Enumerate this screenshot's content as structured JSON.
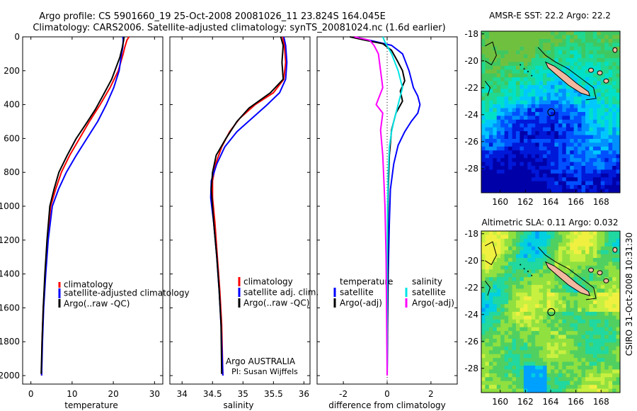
{
  "title_line1": "Argo profile: CS 5901660_19 25-Oct-2008 20081026_11 23.824S 164.045E",
  "title_line2": "Climatology: CARS2006. Satellite-adjusted climatology: synTS_20081024.nc (1.6d earlier)",
  "side_stamp": "CSIRO 31-Oct-2008 10:31:30",
  "colors": {
    "climatology": "#ff0000",
    "satellite": "#0000ff",
    "argo": "#000000",
    "salinity_satellite": "#00e5e5",
    "salinity_argo": "#ff00ff"
  },
  "chart_data": [
    {
      "type": "line",
      "xlabel": "temperature",
      "xlim": [
        -2,
        32
      ],
      "ylim": [
        2050,
        0
      ],
      "xticks": [
        0,
        10,
        20,
        30
      ],
      "xtick_labels": [
        "0",
        "10",
        "20",
        "30"
      ],
      "yticks": [
        0,
        200,
        400,
        600,
        800,
        1000,
        1200,
        1400,
        1600,
        1800,
        2000
      ],
      "ytick_labels": [
        "0",
        "200",
        "400",
        "600",
        "800",
        "1000",
        "1200",
        "1400",
        "1600",
        "1800",
        "2000"
      ],
      "legend": [
        "climatology",
        "satellite-adjusted climatology",
        "Argo(..raw -QC)"
      ],
      "series": [
        {
          "name": "climatology",
          "color": "#ff0000",
          "x": [
            23.8,
            23.3,
            22.8,
            22.4,
            21.2,
            19.2,
            16.8,
            14.2,
            11.8,
            9.4,
            7.4,
            6.0,
            4.8,
            4.0,
            3.5,
            3.0,
            2.7,
            2.6
          ],
          "y": [
            0,
            20,
            60,
            100,
            200,
            300,
            400,
            500,
            600,
            700,
            800,
            900,
            1000,
            1200,
            1400,
            1600,
            1800,
            2000
          ]
        },
        {
          "name": "satellite-adjusted climatology",
          "color": "#0000ff",
          "x": [
            22.3,
            22.4,
            22.3,
            22.0,
            21.4,
            20.1,
            18.3,
            16.2,
            13.6,
            11.0,
            8.6,
            6.7,
            5.2,
            4.2,
            3.6,
            3.1,
            2.8,
            2.6
          ],
          "y": [
            0,
            20,
            60,
            100,
            200,
            300,
            400,
            500,
            600,
            700,
            800,
            900,
            1000,
            1200,
            1400,
            1600,
            1800,
            2000
          ]
        },
        {
          "name": "Argo(..raw -QC)",
          "color": "#000000",
          "x": [
            22.6,
            22.5,
            22.2,
            21.6,
            19.6,
            17.4,
            15.6,
            13.2,
            11.0,
            8.8,
            6.8,
            5.6,
            4.6,
            3.9,
            3.4,
            3.0,
            2.7,
            2.5
          ],
          "y": [
            0,
            20,
            60,
            120,
            250,
            350,
            430,
            520,
            600,
            700,
            800,
            900,
            1000,
            1200,
            1400,
            1600,
            1800,
            1990
          ]
        }
      ]
    },
    {
      "type": "line",
      "xlabel": "salinity",
      "xlim": [
        33.8,
        36.1
      ],
      "ylim": [
        2050,
        0
      ],
      "xticks": [
        34,
        34.5,
        35,
        35.5,
        36
      ],
      "xtick_labels": [
        "34",
        "34.5",
        "35",
        "35.5",
        "36"
      ],
      "legend": [
        "climatology",
        "satellite adj. clim.",
        "Argo(..raw -QC)"
      ],
      "annotation_line1": "Argo AUSTRALIA",
      "annotation_line2": "PI: Susan Wijffels",
      "series": [
        {
          "name": "climatology",
          "color": "#ff0000",
          "x": [
            35.65,
            35.68,
            35.7,
            35.67,
            35.5,
            35.2,
            34.95,
            34.78,
            34.65,
            34.55,
            34.5,
            34.5,
            34.54,
            34.58,
            34.62,
            34.65,
            34.67
          ],
          "y": [
            0,
            50,
            150,
            250,
            330,
            400,
            480,
            560,
            650,
            750,
            850,
            950,
            1100,
            1300,
            1500,
            1700,
            2000
          ]
        },
        {
          "name": "satellite adj. clim.",
          "color": "#0000ff",
          "x": [
            35.67,
            35.7,
            35.72,
            35.7,
            35.6,
            35.4,
            35.15,
            34.9,
            34.7,
            34.57,
            34.48,
            34.47,
            34.52,
            34.57,
            34.61,
            34.64,
            34.67
          ],
          "y": [
            0,
            50,
            150,
            250,
            330,
            400,
            480,
            560,
            650,
            750,
            850,
            950,
            1100,
            1300,
            1500,
            1700,
            2000
          ]
        },
        {
          "name": "Argo(..raw -QC)",
          "color": "#000000",
          "x": [
            35.62,
            35.66,
            35.64,
            35.66,
            35.45,
            35.1,
            34.9,
            34.72,
            34.56,
            34.5,
            34.48,
            34.52,
            34.57,
            34.61,
            34.64,
            34.65
          ],
          "y": [
            0,
            50,
            150,
            250,
            330,
            420,
            500,
            600,
            700,
            800,
            900,
            1100,
            1300,
            1500,
            1700,
            1990
          ]
        }
      ]
    },
    {
      "type": "line",
      "xlabel": "difference from climatology",
      "xlim": [
        -3.2,
        3.2
      ],
      "ylim": [
        2050,
        0
      ],
      "xticks": [
        -2,
        0,
        2
      ],
      "xtick_labels": [
        "-2",
        "0",
        "2"
      ],
      "legend_groups": [
        "temperature",
        "salinity"
      ],
      "legend": [
        "satellite",
        "Argo(-adj)",
        "satellite",
        "Argo(-adj)"
      ],
      "series": [
        {
          "name": "temperature satellite",
          "color": "#0000ff",
          "x": [
            -1.5,
            -0.8,
            0.2,
            0.7,
            1.0,
            1.2,
            1.4,
            1.5,
            1.4,
            1.1,
            0.8,
            0.5,
            0.3,
            0.15,
            0.1,
            0.05,
            0.02,
            0.0
          ],
          "y": [
            0,
            20,
            50,
            100,
            200,
            300,
            350,
            400,
            450,
            500,
            560,
            640,
            750,
            900,
            1100,
            1400,
            1700,
            2000
          ]
        },
        {
          "name": "temperature Argo(-adj)",
          "color": "#000000",
          "x": [
            -1.7,
            -1.0,
            -0.2,
            0.2,
            0.5,
            0.7,
            0.8,
            0.6,
            0.7,
            0.4,
            0.2,
            0.1,
            0.05,
            0.03,
            0.02,
            0.0
          ],
          "y": [
            0,
            20,
            40,
            80,
            150,
            200,
            260,
            320,
            380,
            450,
            550,
            700,
            900,
            1200,
            1600,
            2000
          ]
        },
        {
          "name": "salinity satellite",
          "color": "#00e5e5",
          "x": [
            -0.2,
            -0.1,
            0.2,
            0.5,
            0.7,
            0.6,
            0.5,
            0.4,
            0.3,
            0.2,
            0.1,
            0.05,
            0.02,
            0.0,
            0.0
          ],
          "y": [
            0,
            30,
            100,
            200,
            300,
            350,
            400,
            450,
            500,
            560,
            650,
            800,
            1000,
            1400,
            2000
          ]
        },
        {
          "name": "salinity Argo(-adj)",
          "color": "#ff00ff",
          "x": [
            -1.5,
            -0.8,
            -0.6,
            -0.4,
            -0.3,
            -0.2,
            -0.5,
            -0.2,
            -0.3,
            -0.2,
            -0.15,
            -0.1,
            -0.05,
            0.0
          ],
          "y": [
            0,
            20,
            50,
            100,
            200,
            300,
            400,
            450,
            550,
            700,
            850,
            1000,
            1300,
            2000
          ]
        }
      ]
    },
    {
      "type": "heatmap",
      "title": "AMSR-E SST: 22.2  Argo: 22.2",
      "xlim": [
        158.5,
        169.5
      ],
      "ylim": [
        -29.8,
        -17.8
      ],
      "xticks": [
        160,
        162,
        164,
        166,
        168
      ],
      "xtick_labels": [
        "160",
        "162",
        "164",
        "166",
        "168"
      ],
      "yticks": [
        -18,
        -20,
        -22,
        -24,
        -26,
        -28
      ],
      "ytick_labels": [
        "-18",
        "-20",
        "-22",
        "-24",
        "-26",
        "-28"
      ],
      "marker": {
        "lon": 164.05,
        "lat": -23.82
      }
    },
    {
      "type": "heatmap",
      "title": "Altimetric SLA: 0.11  Argo: 0.032",
      "xlim": [
        158.5,
        169.5
      ],
      "ylim": [
        -29.8,
        -17.8
      ],
      "xticks": [
        160,
        162,
        164,
        166,
        168
      ],
      "xtick_labels": [
        "160",
        "162",
        "164",
        "166",
        "168"
      ],
      "yticks": [
        -18,
        -20,
        -22,
        -24,
        -26,
        -28
      ],
      "ytick_labels": [
        "-18",
        "-20",
        "-22",
        "-24",
        "-26",
        "-28"
      ],
      "marker": {
        "lon": 164.05,
        "lat": -23.82
      }
    }
  ]
}
